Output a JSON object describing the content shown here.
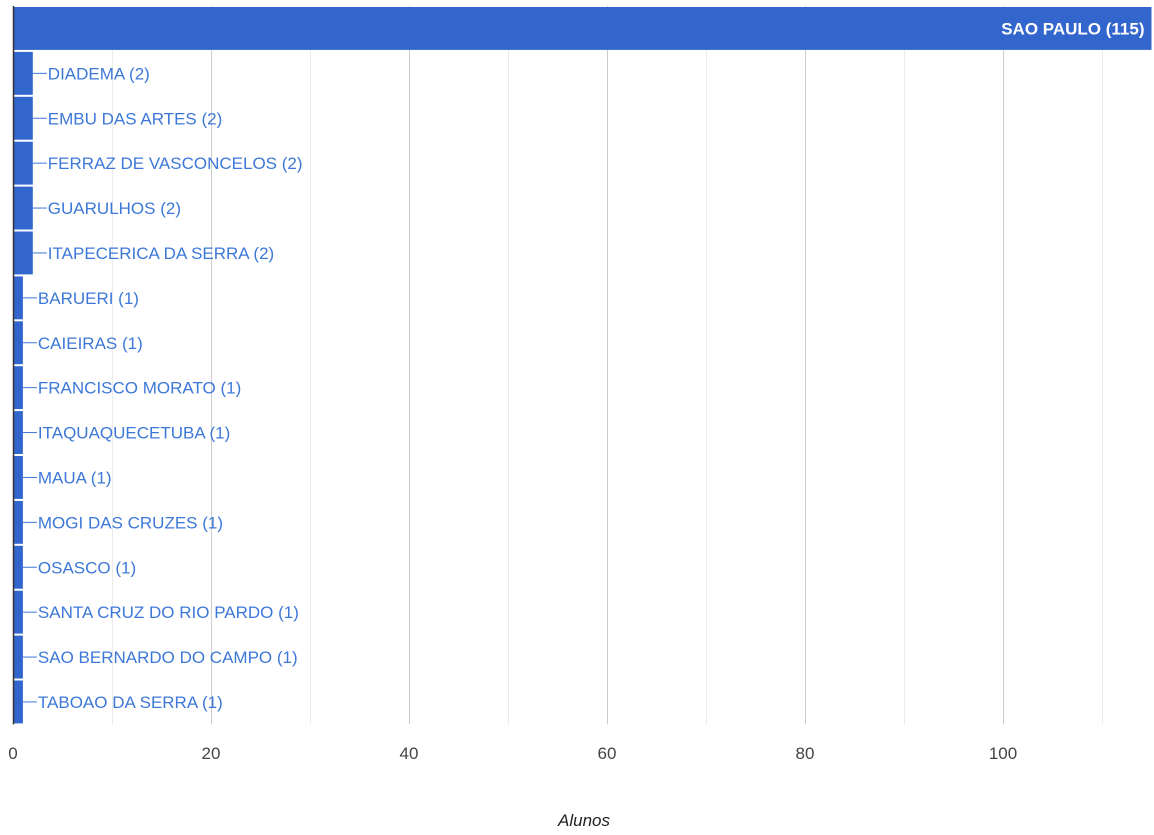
{
  "chart_data": {
    "type": "bar",
    "orientation": "horizontal",
    "categories": [
      "SAO PAULO",
      "DIADEMA",
      "EMBU DAS ARTES",
      "FERRAZ DE VASCONCELOS",
      "GUARULHOS",
      "ITAPECERICA DA SERRA",
      "BARUERI",
      "CAIEIRAS",
      "FRANCISCO MORATO",
      "ITAQUAQUECETUBA",
      "MAUA",
      "MOGI DAS CRUZES",
      "OSASCO",
      "SANTA CRUZ DO RIO PARDO",
      "SAO BERNARDO DO CAMPO",
      "TABOAO DA SERRA"
    ],
    "values": [
      115,
      2,
      2,
      2,
      2,
      2,
      1,
      1,
      1,
      1,
      1,
      1,
      1,
      1,
      1,
      1
    ],
    "data_labels": [
      "SAO PAULO (115)",
      "DIADEMA (2)",
      "EMBU DAS ARTES (2)",
      "FERRAZ DE VASCONCELOS (2)",
      "GUARULHOS (2)",
      "ITAPECERICA DA SERRA (2)",
      "BARUERI (1)",
      "CAIEIRAS (1)",
      "FRANCISCO MORATO (1)",
      "ITAQUAQUECETUBA (1)",
      "MAUA (1)",
      "MOGI DAS CRUZES (1)",
      "OSASCO (1)",
      "SANTA CRUZ DO RIO PARDO (1)",
      "SAO BERNARDO DO CAMPO (1)",
      "TABOAO DA SERRA (1)"
    ],
    "xlabel": "Alunos",
    "ylabel": "",
    "title": "",
    "xlim": [
      0,
      115
    ],
    "x_ticks": [
      0,
      20,
      40,
      60,
      80,
      100
    ],
    "x_tick_labels": [
      "0",
      "20",
      "40",
      "60",
      "80",
      "100"
    ],
    "minor_gridline_step": 10,
    "grid": true,
    "legend": "none",
    "colors": {
      "bar": "#3366cc",
      "label_outside": "#3d78d8",
      "label_inside": "#ffffff",
      "leader_line": "#3d78d8",
      "grid_major": "#cccccc",
      "grid_minor": "#ebebeb",
      "axis_line": "#333333",
      "tick_text": "#444444",
      "axis_title": "#222222"
    }
  }
}
